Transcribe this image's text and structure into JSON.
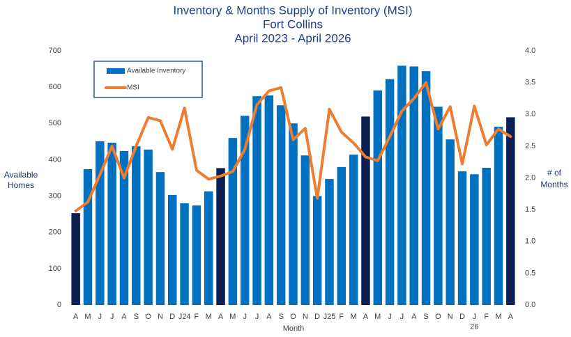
{
  "chart_data": {
    "type": "bar_line",
    "title": [
      "Inventory & Months Supply of Inventory (MSI)",
      "Fort Collins",
      "April 2023 - April 2026"
    ],
    "x_label": "Month",
    "y_label": [
      "Available",
      "Homes"
    ],
    "y2_label": [
      "# of",
      "Months"
    ],
    "categories": [
      "A",
      "M",
      "J",
      "J",
      "A",
      "S",
      "O",
      "N",
      "D",
      "J24",
      "F",
      "M",
      "A",
      "M",
      "J",
      "J",
      "A",
      "S",
      "O",
      "N",
      "D",
      "J25",
      "F",
      "M",
      "A",
      "M",
      "J",
      "J",
      "A",
      "S",
      "O",
      "N",
      "D",
      "J\n26",
      "F",
      "M",
      "A"
    ],
    "series": [
      {
        "name": "Available Inventory",
        "kind": "bar",
        "color": "#0070c0",
        "highlight_color": "#0c1f52",
        "highlight": [
          true,
          false,
          false,
          false,
          false,
          false,
          false,
          false,
          false,
          false,
          false,
          false,
          true,
          false,
          false,
          false,
          false,
          false,
          false,
          false,
          false,
          false,
          false,
          false,
          true,
          false,
          false,
          false,
          false,
          false,
          false,
          false,
          false,
          false,
          false,
          false,
          true
        ],
        "values": [
          253,
          374,
          451,
          447,
          424,
          437,
          428,
          366,
          303,
          280,
          274,
          313,
          377,
          460,
          521,
          575,
          577,
          550,
          500,
          412,
          300,
          347,
          380,
          414,
          519,
          591,
          622,
          659,
          657,
          644,
          546,
          456,
          368,
          360,
          378,
          491,
          517
        ]
      },
      {
        "name": "MSI",
        "kind": "line",
        "axis": "y2",
        "color": "#ed7d31",
        "values": [
          1.48,
          1.62,
          2.05,
          2.5,
          2.0,
          2.5,
          2.95,
          2.9,
          2.45,
          3.1,
          2.12,
          1.98,
          2.03,
          2.1,
          2.45,
          3.15,
          3.37,
          3.42,
          2.6,
          2.78,
          1.68,
          3.08,
          2.72,
          2.55,
          2.33,
          2.27,
          2.65,
          3.05,
          3.25,
          3.5,
          2.77,
          3.12,
          2.22,
          3.13,
          2.52,
          2.77,
          2.65
        ]
      }
    ],
    "ylim": [
      0,
      700
    ],
    "yticks": [
      0,
      100,
      200,
      300,
      400,
      500,
      600,
      700
    ],
    "y2lim": [
      0,
      4
    ],
    "y2ticks": [
      {
        "value": 0,
        "label": "0.0"
      },
      {
        "value": 0.5,
        "label": "0.5"
      },
      {
        "value": 1,
        "label": "1.0"
      },
      {
        "value": 1.5,
        "label": "1.5"
      },
      {
        "value": 2,
        "label": "2.0"
      },
      {
        "value": 2.5,
        "label": "2.5"
      },
      {
        "value": 3,
        "label": "3.0"
      },
      {
        "value": 3.5,
        "label": "3.5"
      },
      {
        "value": 4,
        "label": "4.0"
      }
    ],
    "grid": false,
    "legend": "upper-left"
  }
}
